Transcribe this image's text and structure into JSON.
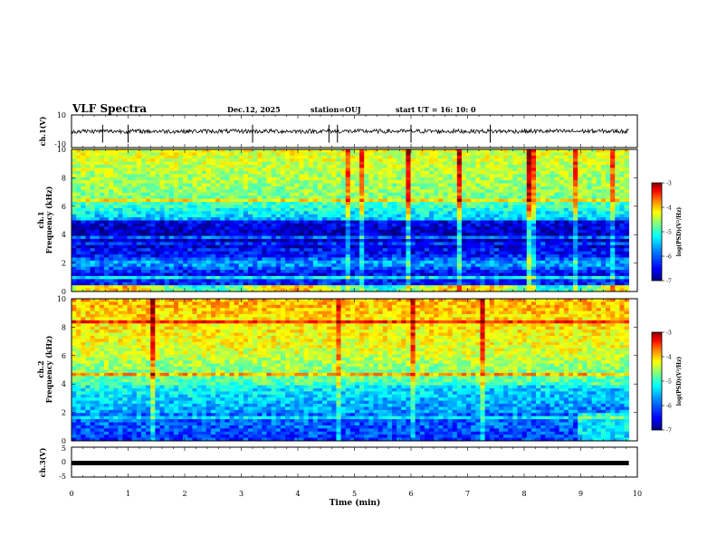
{
  "header": {
    "title": "VLF Spectra",
    "date": "Dec.12, 2025",
    "station": "station=OUJ",
    "start_ut": "start  UT =   16: 10: 0"
  },
  "chart_data": [
    {
      "type": "line",
      "panel": "ch1-waveform",
      "ylabel": "ch.1(V)",
      "ytick_labels": [
        "10",
        "-10"
      ],
      "ylim": [
        -10,
        10
      ],
      "xlim": [
        0,
        10
      ],
      "baseline": 0,
      "noise_amplitude": 1.3,
      "spikes": [
        0.55,
        1.0,
        3.2,
        4.55,
        4.7,
        6.0,
        7.4
      ]
    },
    {
      "type": "heatmap",
      "panel": "ch1-spectrogram",
      "ylabel_line1": "ch.1",
      "ylabel_line2": "Frequency  (kHz)",
      "yticks": [
        0,
        2,
        4,
        6,
        8,
        10
      ],
      "ylim": [
        0,
        10
      ],
      "xlim": [
        0,
        10
      ],
      "colorbar": {
        "label": "log(PSD)(V²/Hz)",
        "ticks": [
          "-3",
          "-4",
          "-5",
          "-6",
          "-7"
        ],
        "range": [
          -7,
          -3
        ]
      }
    },
    {
      "type": "heatmap",
      "panel": "ch2-spectrogram",
      "ylabel_line1": "ch.2",
      "ylabel_line2": "Frequency  (kHz)",
      "yticks": [
        0,
        2,
        4,
        6,
        8,
        10
      ],
      "ylim": [
        0,
        10
      ],
      "xlim": [
        0,
        10
      ],
      "colorbar": {
        "label": "log(PSD)(V²/Hz)",
        "ticks": [
          "-3",
          "-4",
          "-5",
          "-6",
          "-7"
        ],
        "range": [
          -7,
          -3
        ]
      }
    },
    {
      "type": "line",
      "panel": "ch3-waveform",
      "ylabel": "ch.3(V)",
      "ytick_labels": [
        "5",
        "0",
        "-5"
      ],
      "ylim": [
        -5,
        5
      ],
      "xlim": [
        0,
        10
      ],
      "baseline": 0
    }
  ],
  "xaxis": {
    "label": "Time  (min)",
    "ticks": [
      "0",
      "1",
      "2",
      "3",
      "4",
      "5",
      "6",
      "7",
      "8",
      "9",
      "10"
    ],
    "data_end": 9.85
  },
  "colors": {
    "axis": "#000000",
    "waveform": "#000000",
    "colormap": [
      "#00007f",
      "#0000ff",
      "#007fff",
      "#00ffff",
      "#7fff7f",
      "#ffff00",
      "#ff7f00",
      "#ff0000",
      "#7f0000"
    ]
  }
}
